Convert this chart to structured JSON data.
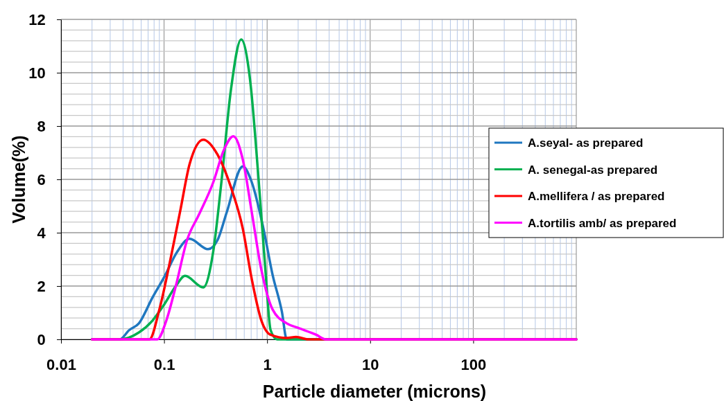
{
  "chart_data": {
    "type": "line",
    "xlabel": "Particle diameter (microns)",
    "ylabel": "Volume(%)",
    "log": "x",
    "grid": true,
    "legend": "right",
    "marker": "none",
    "line_style": "solid",
    "xlim": [
      0.01,
      1000
    ],
    "xticks": [
      0.01,
      {
        "value": 0.02,
        "label": null
      },
      {
        "value": 0.03,
        "label": null
      },
      {
        "value": 0.04,
        "label": null
      },
      {
        "value": 0.05,
        "label": null
      },
      {
        "value": 0.06,
        "label": null
      },
      {
        "value": 0.07,
        "label": null
      },
      {
        "value": 0.08,
        "label": null
      },
      {
        "value": 0.09,
        "label": null
      },
      0.1,
      {
        "value": 0.2,
        "label": null
      },
      {
        "value": 0.3,
        "label": null
      },
      {
        "value": 0.4,
        "label": null
      },
      {
        "value": 0.5,
        "label": null
      },
      {
        "value": 0.6,
        "label": null
      },
      {
        "value": 0.7,
        "label": null
      },
      {
        "value": 0.8,
        "label": null
      },
      {
        "value": 0.9,
        "label": null
      },
      1,
      {
        "value": 2,
        "label": null
      },
      {
        "value": 3,
        "label": null
      },
      {
        "value": 4,
        "label": null
      },
      {
        "value": 5,
        "label": null
      },
      {
        "value": 6,
        "label": null
      },
      {
        "value": 7,
        "label": null
      },
      {
        "value": 8,
        "label": null
      },
      {
        "value": 9,
        "label": null
      },
      10,
      {
        "value": 20,
        "label": null
      },
      {
        "value": 30,
        "label": null
      },
      {
        "value": 40,
        "label": null
      },
      {
        "value": 50,
        "label": null
      },
      {
        "value": 60,
        "label": null
      },
      {
        "value": 70,
        "label": null
      },
      {
        "value": 80,
        "label": null
      },
      {
        "value": 90,
        "label": null
      },
      100,
      {
        "value": 200,
        "label": null
      },
      {
        "value": 300,
        "label": null
      },
      {
        "value": 400,
        "label": null
      },
      {
        "value": 500,
        "label": null
      },
      {
        "value": 600,
        "label": null
      },
      {
        "value": 700,
        "label": null
      },
      {
        "value": 800,
        "label": null
      },
      {
        "value": 900,
        "label": null
      }
    ],
    "ylim": [
      0,
      12
    ],
    "yticks": [
      0,
      {
        "value": 0.4,
        "label": null
      },
      {
        "value": 0.8,
        "label": null
      },
      {
        "value": 1.2,
        "label": null
      },
      {
        "value": 1.6,
        "label": null
      },
      2,
      {
        "value": 2.4,
        "label": null
      },
      {
        "value": 2.8,
        "label": null
      },
      {
        "value": 3.2,
        "label": null
      },
      {
        "value": 3.6,
        "label": null
      },
      4,
      {
        "value": 4.4,
        "label": null
      },
      {
        "value": 4.8,
        "label": null
      },
      {
        "value": 5.2,
        "label": null
      },
      {
        "value": 5.6,
        "label": null
      },
      6,
      {
        "value": 6.4,
        "label": null
      },
      {
        "value": 6.8,
        "label": null
      },
      {
        "value": 7.2,
        "label": null
      },
      {
        "value": 7.6,
        "label": null
      },
      8,
      {
        "value": 8.4,
        "label": null
      },
      {
        "value": 8.8,
        "label": null
      },
      {
        "value": 9.2,
        "label": null
      },
      {
        "value": 9.6,
        "label": null
      },
      10,
      {
        "value": 10.4,
        "label": null
      },
      {
        "value": 10.8,
        "label": null
      },
      {
        "value": 11.2,
        "label": null
      },
      {
        "value": 11.6,
        "label": null
      },
      12
    ],
    "series": [
      {
        "name": "A.seyal- as prepared",
        "color": "#1f77c0",
        "x": [
          0.02,
          0.037,
          0.046,
          0.057,
          0.077,
          0.103,
          0.13,
          0.177,
          0.267,
          0.33,
          0.405,
          0.58,
          0.71,
          0.92,
          1.13,
          1.39,
          1.55,
          1000
        ],
        "values": [
          0,
          0,
          0.35,
          0.6,
          1.56,
          2.42,
          3.2,
          3.77,
          3.38,
          3.72,
          4.76,
          6.49,
          5.89,
          4.16,
          2.42,
          1.04,
          0,
          0
        ]
      },
      {
        "name": "A. senegal-as prepared",
        "color": "#00b050",
        "x": [
          0.02,
          0.037,
          0.057,
          0.077,
          0.1,
          0.13,
          0.16,
          0.24,
          0.3,
          0.36,
          0.445,
          0.56,
          0.68,
          0.83,
          0.97,
          1.08,
          1.25,
          1000
        ],
        "values": [
          0,
          0,
          0.26,
          0.7,
          1.3,
          2.0,
          2.38,
          1.95,
          3.3,
          5.9,
          9.35,
          11.25,
          9.8,
          5.9,
          2.42,
          0.35,
          0,
          0
        ]
      },
      {
        "name": "A.mellifera / as prepared",
        "color": "#ff0000",
        "x": [
          0.02,
          0.072,
          0.09,
          0.117,
          0.144,
          0.177,
          0.24,
          0.33,
          0.445,
          0.58,
          0.71,
          0.88,
          1.08,
          1.55,
          1.91,
          2.5,
          1000
        ],
        "values": [
          0,
          0,
          1.12,
          3.12,
          4.85,
          6.58,
          7.49,
          6.93,
          5.71,
          4.16,
          2.25,
          0.7,
          0.17,
          0.05,
          0.09,
          0,
          0
        ]
      },
      {
        "name": "A.tortilis amb/ as prepared",
        "color": "#ff00ff",
        "x": [
          0.02,
          0.086,
          0.105,
          0.13,
          0.167,
          0.218,
          0.3,
          0.38,
          0.47,
          0.58,
          0.71,
          0.88,
          1.13,
          1.55,
          2.0,
          3.0,
          3.7,
          1000
        ],
        "values": [
          0,
          0,
          0.7,
          2.0,
          3.72,
          4.68,
          5.89,
          7.1,
          7.62,
          6.75,
          4.76,
          2.6,
          1.12,
          0.6,
          0.43,
          0.17,
          0,
          0
        ]
      }
    ]
  }
}
